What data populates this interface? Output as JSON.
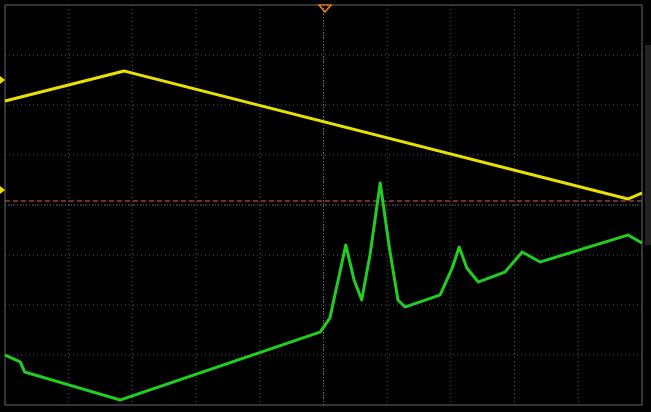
{
  "chart_data": {
    "type": "line",
    "xlim": [
      0,
      10
    ],
    "ylim": [
      -4,
      4
    ],
    "xticks": [
      0,
      1,
      2,
      3,
      4,
      5,
      6,
      7,
      8,
      9,
      10
    ],
    "yticks": [
      -4,
      -3,
      -2,
      -1,
      0,
      1,
      2,
      3,
      4
    ],
    "grid": true,
    "series": [
      {
        "color": "#e8e000",
        "x": [
          0,
          1.87,
          9.78,
          10
        ],
        "values": [
          2.08,
          2.68,
          0.12,
          0.24
        ]
      },
      {
        "color": "#22cc22",
        "x": [
          0,
          0.24,
          0.31,
          1.81,
          4.95,
          5.1,
          5.23,
          5.35,
          5.48,
          5.6,
          5.73,
          5.89,
          6.04,
          6.17,
          6.28,
          6.83,
          7.02,
          7.13,
          7.25,
          7.43,
          7.85,
          8.12,
          8.4,
          9.78,
          10
        ],
        "values": [
          -3.0,
          -3.14,
          -3.34,
          -3.9,
          -2.54,
          -2.26,
          -1.5,
          -0.8,
          -1.5,
          -1.9,
          -1.0,
          0.44,
          -0.9,
          -1.9,
          -2.04,
          -1.8,
          -1.26,
          -0.84,
          -1.26,
          -1.54,
          -1.34,
          -0.94,
          -1.14,
          -0.6,
          -0.76
        ]
      }
    ]
  }
}
